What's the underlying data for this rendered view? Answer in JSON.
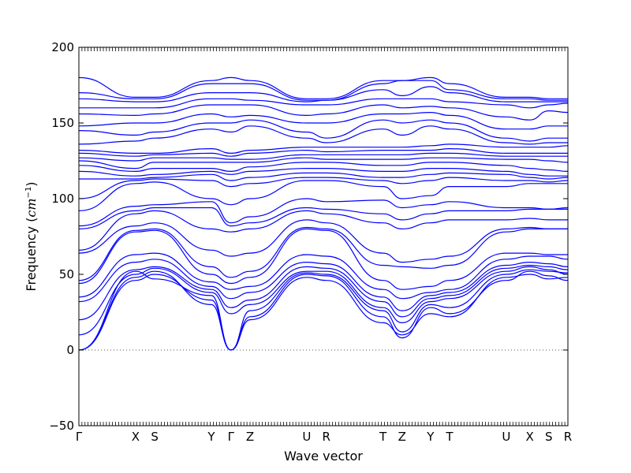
{
  "chart_data": {
    "type": "line",
    "xlabel": "Wave vector",
    "ylabel": "Frequency (",
    "ylabel_unit": "cm",
    "ylabel_unit_exp": "−1",
    "ylabel_close": ")",
    "ylim": [
      -50,
      200
    ],
    "yticks": [
      -50,
      0,
      50,
      100,
      150,
      200
    ],
    "high_symmetry_labels": [
      "Γ",
      "X",
      "S",
      "Y",
      "Γ",
      "Z",
      "U",
      "R",
      "T",
      "Z",
      "Y",
      "T",
      "U",
      "X",
      "S",
      "R"
    ],
    "high_symmetry_positions": [
      0.0,
      0.116,
      0.155,
      0.271,
      0.311,
      0.35,
      0.466,
      0.506,
      0.622,
      0.661,
      0.719,
      0.758,
      0.874,
      0.922,
      0.961,
      1.0
    ],
    "zero_line": {
      "y": 0,
      "style": "dotted"
    },
    "line_color": "#0000ff",
    "series": [
      {
        "values": [
          0,
          46,
          50,
          33,
          0,
          22,
          50,
          49,
          22,
          8,
          28,
          24,
          46,
          52,
          49,
          46
        ]
      },
      {
        "values": [
          0,
          48,
          52,
          30,
          0,
          20,
          48,
          46,
          18,
          10,
          24,
          22,
          48,
          50,
          47,
          48
        ]
      },
      {
        "values": [
          0,
          52,
          47,
          36,
          0,
          26,
          51,
          50,
          26,
          12,
          30,
          28,
          50,
          53,
          52,
          51
        ]
      },
      {
        "values": [
          10,
          50,
          54,
          38,
          24,
          30,
          52,
          52,
          28,
          18,
          32,
          34,
          52,
          55,
          53,
          50
        ]
      },
      {
        "values": [
          20,
          53,
          55,
          40,
          28,
          33,
          55,
          54,
          32,
          22,
          34,
          36,
          54,
          56,
          55,
          53
        ]
      },
      {
        "values": [
          32,
          58,
          60,
          42,
          34,
          38,
          58,
          57,
          35,
          26,
          36,
          38,
          56,
          58,
          57,
          55
        ]
      },
      {
        "values": [
          35,
          63,
          64,
          45,
          40,
          42,
          63,
          62,
          40,
          34,
          38,
          40,
          60,
          62,
          62,
          60
        ]
      },
      {
        "values": [
          44,
          78,
          79,
          50,
          44,
          48,
          80,
          79,
          46,
          40,
          42,
          46,
          64,
          64,
          63,
          63
        ]
      },
      {
        "values": [
          46,
          79,
          80,
          55,
          48,
          52,
          81,
          80,
          56,
          55,
          54,
          56,
          78,
          80,
          80,
          80
        ]
      },
      {
        "values": [
          64,
          82,
          84,
          66,
          62,
          64,
          86,
          84,
          64,
          58,
          60,
          62,
          80,
          81,
          80,
          80
        ]
      },
      {
        "values": [
          66,
          90,
          92,
          80,
          78,
          80,
          92,
          90,
          84,
          80,
          84,
          86,
          86,
          87,
          86,
          86
        ]
      },
      {
        "values": [
          80,
          92,
          94,
          94,
          82,
          84,
          94,
          93,
          90,
          86,
          90,
          92,
          92,
          93,
          93,
          94
        ]
      },
      {
        "values": [
          82,
          95,
          96,
          98,
          84,
          88,
          100,
          98,
          99,
          94,
          96,
          98,
          94,
          94,
          93,
          93
        ]
      },
      {
        "values": [
          92,
          110,
          111,
          100,
          96,
          100,
          112,
          112,
          108,
          100,
          102,
          108,
          108,
          110,
          110,
          110
        ]
      },
      {
        "values": [
          100,
          112,
          113,
          112,
          108,
          110,
          114,
          114,
          112,
          110,
          112,
          114,
          112,
          112,
          111,
          112
        ]
      },
      {
        "values": [
          113,
          113,
          114,
          116,
          112,
          114,
          117,
          117,
          114,
          114,
          116,
          117,
          116,
          114,
          113,
          114
        ]
      },
      {
        "values": [
          118,
          115,
          116,
          118,
          116,
          118,
          120,
          120,
          118,
          118,
          120,
          120,
          118,
          116,
          115,
          115
        ]
      },
      {
        "values": [
          122,
          118,
          120,
          120,
          118,
          121,
          124,
          124,
          122,
          122,
          124,
          124,
          122,
          120,
          119,
          118
        ]
      },
      {
        "values": [
          125,
          120,
          124,
          124,
          124,
          124,
          127,
          126,
          126,
          126,
          127,
          127,
          126,
          126,
          125,
          124
        ]
      },
      {
        "values": [
          127,
          125,
          127,
          127,
          126,
          126,
          129,
          129,
          129,
          129,
          130,
          130,
          128,
          128,
          128,
          128
        ]
      },
      {
        "values": [
          130,
          128,
          129,
          130,
          128,
          130,
          132,
          131,
          132,
          132,
          132,
          133,
          130,
          130,
          130,
          130
        ]
      },
      {
        "values": [
          132,
          130,
          130,
          133,
          130,
          132,
          134,
          134,
          134,
          134,
          135,
          136,
          134,
          134,
          134,
          135
        ]
      },
      {
        "values": [
          136,
          138,
          140,
          146,
          144,
          148,
          140,
          137,
          146,
          142,
          148,
          146,
          137,
          136,
          137,
          137
        ]
      },
      {
        "values": [
          145,
          142,
          144,
          150,
          150,
          152,
          144,
          140,
          152,
          150,
          152,
          150,
          140,
          138,
          140,
          140
        ]
      },
      {
        "values": [
          148,
          150,
          150,
          156,
          154,
          155,
          150,
          150,
          156,
          156,
          157,
          155,
          146,
          146,
          148,
          148
        ]
      },
      {
        "values": [
          156,
          155,
          156,
          162,
          162,
          162,
          155,
          156,
          162,
          160,
          161,
          160,
          154,
          152,
          158,
          157
        ]
      },
      {
        "values": [
          160,
          160,
          160,
          166,
          166,
          165,
          162,
          162,
          166,
          166,
          166,
          164,
          162,
          160,
          162,
          163
        ]
      },
      {
        "values": [
          166,
          164,
          164,
          170,
          170,
          170,
          164,
          165,
          172,
          168,
          174,
          170,
          164,
          164,
          164,
          164
        ]
      },
      {
        "values": [
          170,
          166,
          166,
          176,
          176,
          176,
          165,
          165,
          176,
          178,
          178,
          172,
          166,
          166,
          165,
          165
        ]
      },
      {
        "values": [
          180,
          167,
          167,
          178,
          180,
          178,
          166,
          166,
          178,
          178,
          180,
          176,
          167,
          167,
          166,
          166
        ]
      }
    ]
  }
}
